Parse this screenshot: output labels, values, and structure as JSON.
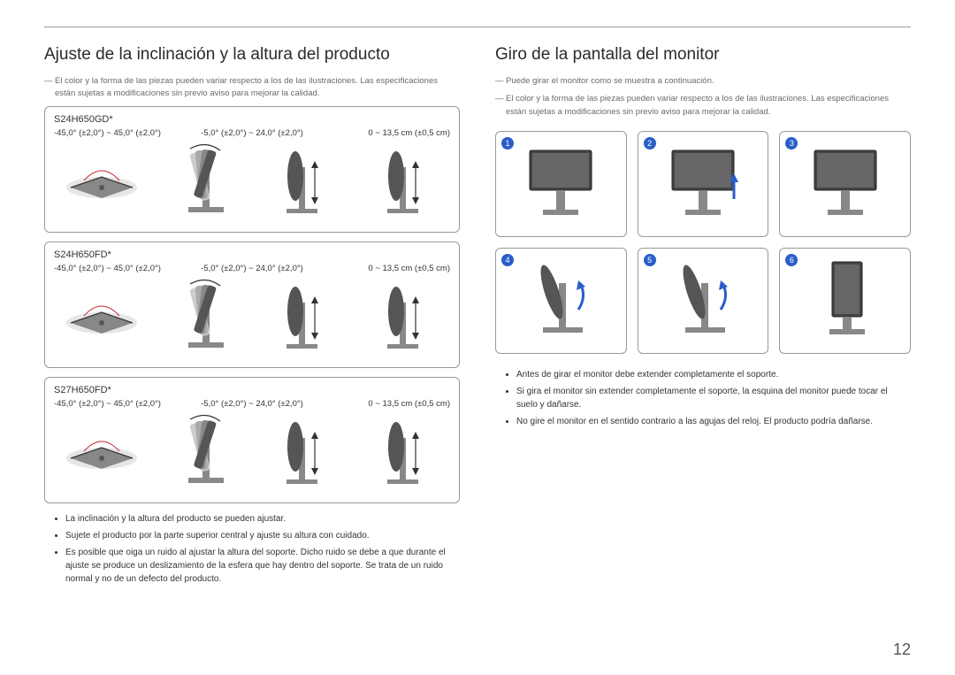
{
  "page_number": "12",
  "left_section": {
    "title": "Ajuste de la inclinación y la altura del producto",
    "note1": "El color y la forma de las piezas pueden variar respecto a los de las ilustraciones. Las especificaciones están sujetas a modificaciones sin previo aviso para mejorar la calidad.",
    "models": [
      {
        "name": "S24H650GD*",
        "swivel": "-45,0° (±2,0°) ~ 45,0° (±2,0°)",
        "tilt": "-5,0° (±2,0°) ~ 24,0° (±2,0°)",
        "height": "0 ~ 13,5 cm (±0,5 cm)"
      },
      {
        "name": "S24H650FD*",
        "swivel": "-45,0° (±2,0°) ~ 45,0° (±2,0°)",
        "tilt": "-5,0° (±2,0°) ~ 24,0° (±2,0°)",
        "height": "0 ~ 13,5 cm (±0,5 cm)"
      },
      {
        "name": "S27H650FD*",
        "swivel": "-45,0° (±2,0°) ~ 45,0° (±2,0°)",
        "tilt": "-5,0° (±2,0°) ~ 24,0° (±2,0°)",
        "height": "0 ~ 13,5 cm (±0,5 cm)"
      }
    ],
    "bullets": [
      "La inclinación y la altura del producto se pueden ajustar.",
      "Sujete el producto por la parte superior central y ajuste su altura con cuidado.",
      "Es posible que oiga un ruido al ajustar la altura del soporte. Dicho ruido se debe a que durante el ajuste se produce un deslizamiento de la esfera que hay dentro del soporte. Se trata de un ruido normal y no de un defecto del producto."
    ]
  },
  "right_section": {
    "title": "Giro de la pantalla del monitor",
    "note1": "Puede girar el monitor como se muestra a continuación.",
    "note2": "El color y la forma de las piezas pueden variar respecto a los de las ilustraciones. Las especificaciones están sujetas a modificaciones sin previo aviso para mejorar la calidad.",
    "steps": [
      "1",
      "2",
      "3",
      "4",
      "5",
      "6"
    ],
    "bullets": [
      "Antes de girar el monitor debe extender completamente el soporte.",
      "Si gira el monitor sin extender completamente el soporte, la esquina del monitor puede tocar el suelo y dañarse.",
      "No gire el monitor en el sentido contrario a las agujas del reloj. El producto podría dañarse."
    ]
  },
  "colors": {
    "accent": "#2a5ec8",
    "border": "#999999",
    "text_muted": "#6a6a6a"
  }
}
